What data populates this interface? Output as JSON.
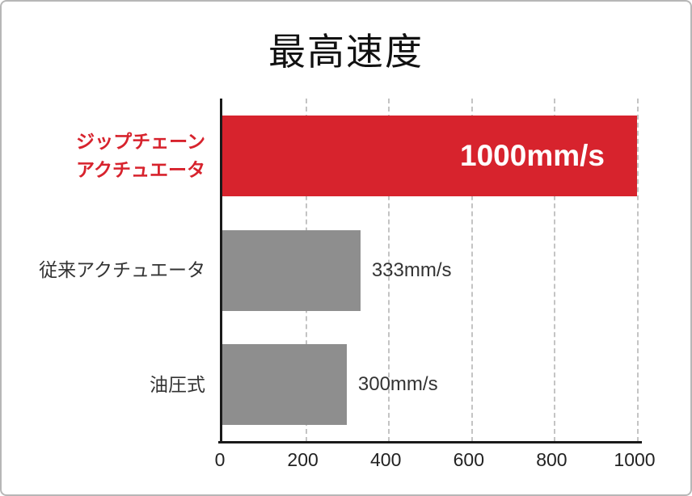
{
  "chart_data": {
    "type": "bar",
    "orientation": "horizontal",
    "title": "最高速度",
    "categories": [
      "ジップチェーン アクチュエータ",
      "従来アクチュエータ",
      "油圧式"
    ],
    "values": [
      1000,
      333,
      300
    ],
    "value_labels": [
      "1000mm/s",
      "333mm/s",
      "300mm/s"
    ],
    "xlim": [
      0,
      1000
    ],
    "x_ticks": [
      0,
      200,
      400,
      600,
      800,
      1000
    ],
    "xlabel": "",
    "ylabel": "",
    "grid": {
      "axis": "x",
      "style": "dashed",
      "color": "#c4c4c4"
    },
    "styles": {
      "bar_colors": [
        "#d7232d",
        "#8e8e8e",
        "#8e8e8e"
      ],
      "category_label_colors": [
        "#d7232d",
        "#333333",
        "#333333"
      ],
      "category_label_bold": [
        true,
        false,
        false
      ],
      "category_label_lines": [
        [
          "ジップチェーン",
          "アクチュエータ"
        ],
        [
          "従来アクチュエータ"
        ],
        [
          "油圧式"
        ]
      ],
      "value_label_inside": [
        true,
        false,
        false
      ],
      "value_label_colors": [
        "#ffffff",
        "#333333",
        "#333333"
      ],
      "axis_color": "#1a1a1a",
      "frame_border_color": "#b7b7b7"
    }
  }
}
